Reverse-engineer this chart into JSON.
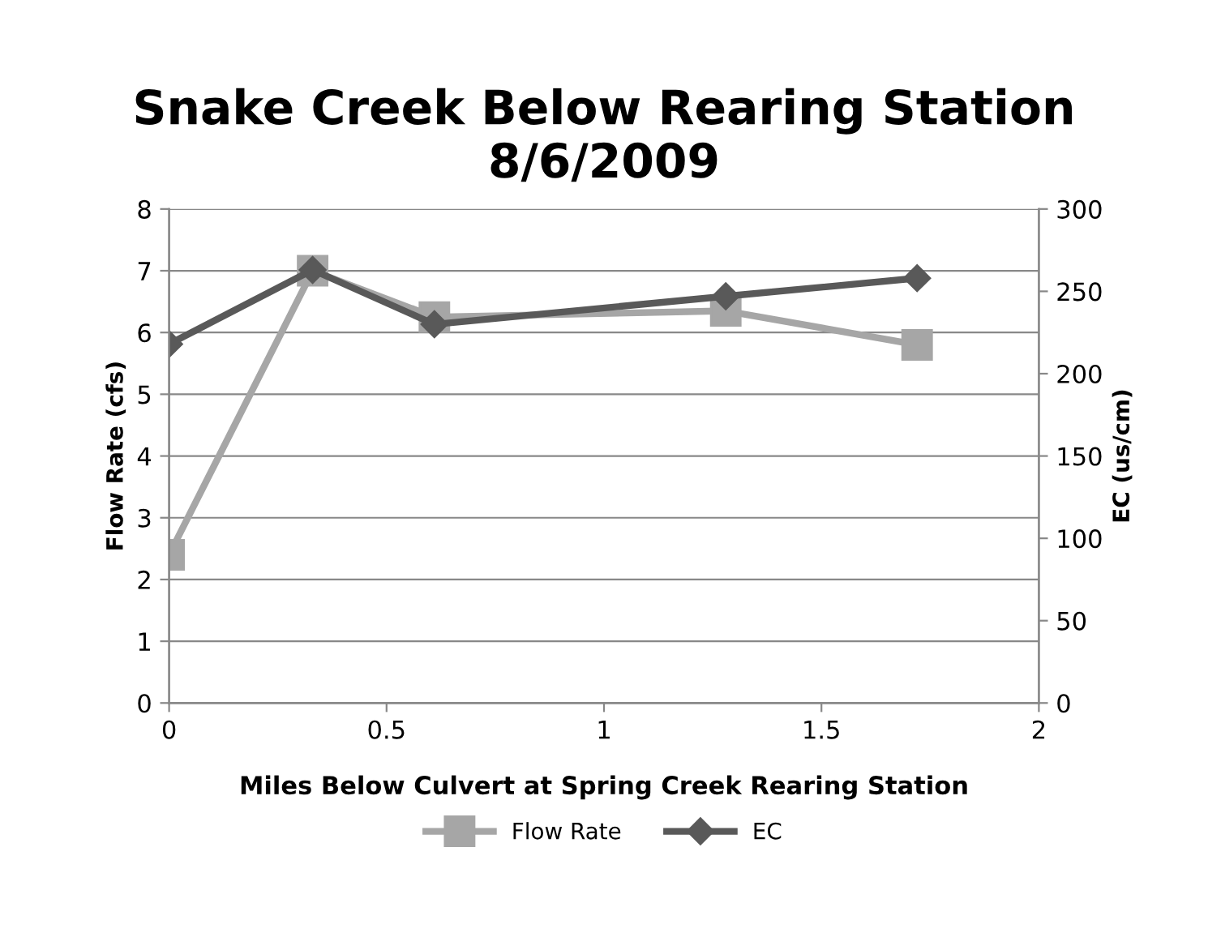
{
  "chart_data": {
    "type": "line",
    "title": "Snake Creek Below Rearing Station\n8/6/2009",
    "xlabel": "Miles Below Culvert at Spring Creek Rearing Station",
    "ylabel": "Flow Rate (cfs)",
    "y2label": "EC (us/cm)",
    "x": [
      0,
      0.33,
      0.61,
      1.28,
      1.72
    ],
    "series": [
      {
        "name": "Flow Rate",
        "color": "#a6a6a6",
        "marker": "square",
        "values": [
          2.4,
          7.0,
          6.25,
          6.35,
          5.8
        ]
      },
      {
        "name": "EC",
        "color": "#595959",
        "marker": "diamond",
        "axis": "y2",
        "values": [
          218,
          263,
          230,
          247,
          258
        ]
      }
    ],
    "xlim": [
      0,
      2
    ],
    "xticks": [
      0,
      0.5,
      1,
      1.5,
      2
    ],
    "ylim": [
      0,
      8
    ],
    "yticks": [
      0,
      1,
      2,
      3,
      4,
      5,
      6,
      7,
      8
    ],
    "y2lim": [
      0,
      300
    ],
    "y2ticks": [
      0,
      50,
      100,
      150,
      200,
      250,
      300
    ],
    "grid": "y",
    "legend": "bottom",
    "line_style": "solid"
  }
}
